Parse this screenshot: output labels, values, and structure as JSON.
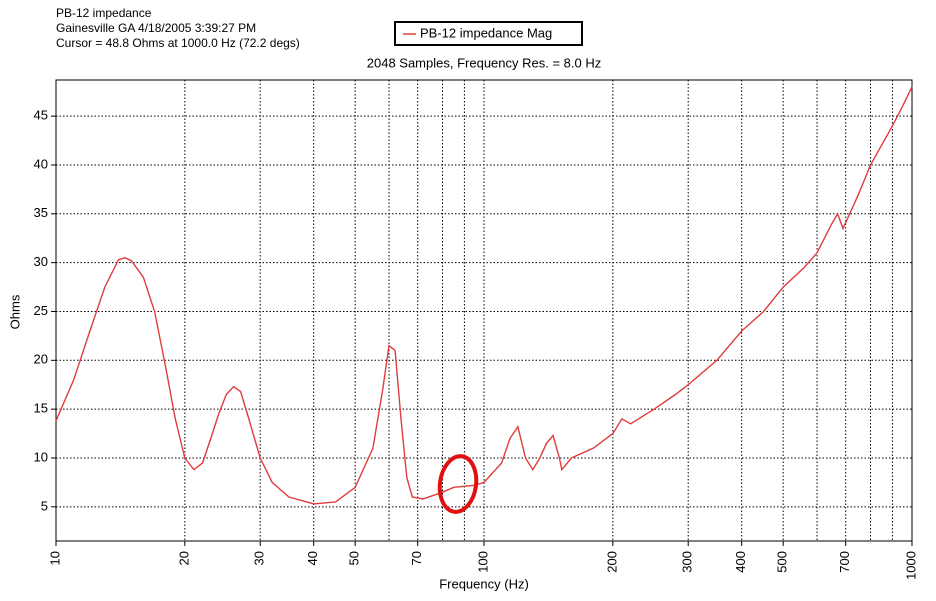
{
  "chart_data": {
    "type": "line",
    "title": "PB-12 impedance",
    "annotations": [
      "Gainesville GA  4/18/2005 3:39:27 PM",
      "Cursor = 48.8 Ohms at 1000.0 Hz (72.2 degs)"
    ],
    "subtitle": "2048 Samples, Frequency Res. = 8.0 Hz",
    "x_label": "Frequency (Hz)",
    "y_label": "Ohms",
    "x_scale": "log",
    "grid": true,
    "xlim": [
      10,
      1000
    ],
    "ylim": [
      1.5,
      48.7
    ],
    "xticks": [
      10,
      20,
      30,
      40,
      50,
      70,
      100,
      200,
      300,
      400,
      500,
      700,
      1000
    ],
    "xgrid": [
      10,
      20,
      30,
      40,
      50,
      60,
      70,
      80,
      90,
      100,
      200,
      300,
      400,
      500,
      600,
      700,
      800,
      900,
      1000
    ],
    "yticks": [
      5,
      10,
      15,
      20,
      25,
      30,
      35,
      40,
      45
    ],
    "series": [
      {
        "name": "PB-12 impedance Mag",
        "color": "#e03c3c",
        "x": [
          10,
          11,
          12,
          13,
          14,
          14.5,
          15,
          16,
          17,
          18,
          19,
          20,
          21,
          22,
          23,
          24,
          25,
          26,
          27,
          28,
          30,
          32,
          35,
          40,
          45,
          50,
          55,
          58,
          60,
          62,
          64,
          66,
          68,
          72,
          80,
          85,
          95,
          100,
          110,
          115,
          120,
          125,
          130,
          135,
          140,
          145,
          150,
          152,
          160,
          180,
          200,
          210,
          220,
          250,
          280,
          300,
          350,
          400,
          450,
          500,
          560,
          600,
          650,
          670,
          690,
          750,
          800,
          900,
          950,
          1000
        ],
        "values": [
          13.8,
          18,
          23,
          27.5,
          30.3,
          30.5,
          30.2,
          28.5,
          25,
          19.5,
          14,
          10,
          8.8,
          9.5,
          12,
          14.5,
          16.5,
          17.3,
          16.8,
          14.5,
          10,
          7.5,
          6,
          5.3,
          5.5,
          7,
          11,
          17,
          21.5,
          21,
          14,
          8,
          6,
          5.8,
          6.5,
          7,
          7.2,
          7.5,
          9.5,
          12,
          13.2,
          10,
          8.8,
          10,
          11.5,
          12.3,
          10,
          8.8,
          10,
          11,
          12.5,
          14,
          13.5,
          15,
          16.5,
          17.5,
          20,
          23,
          25,
          27.5,
          29.5,
          31,
          34,
          35,
          33.5,
          37,
          40,
          44,
          46,
          48
        ]
      }
    ]
  }
}
